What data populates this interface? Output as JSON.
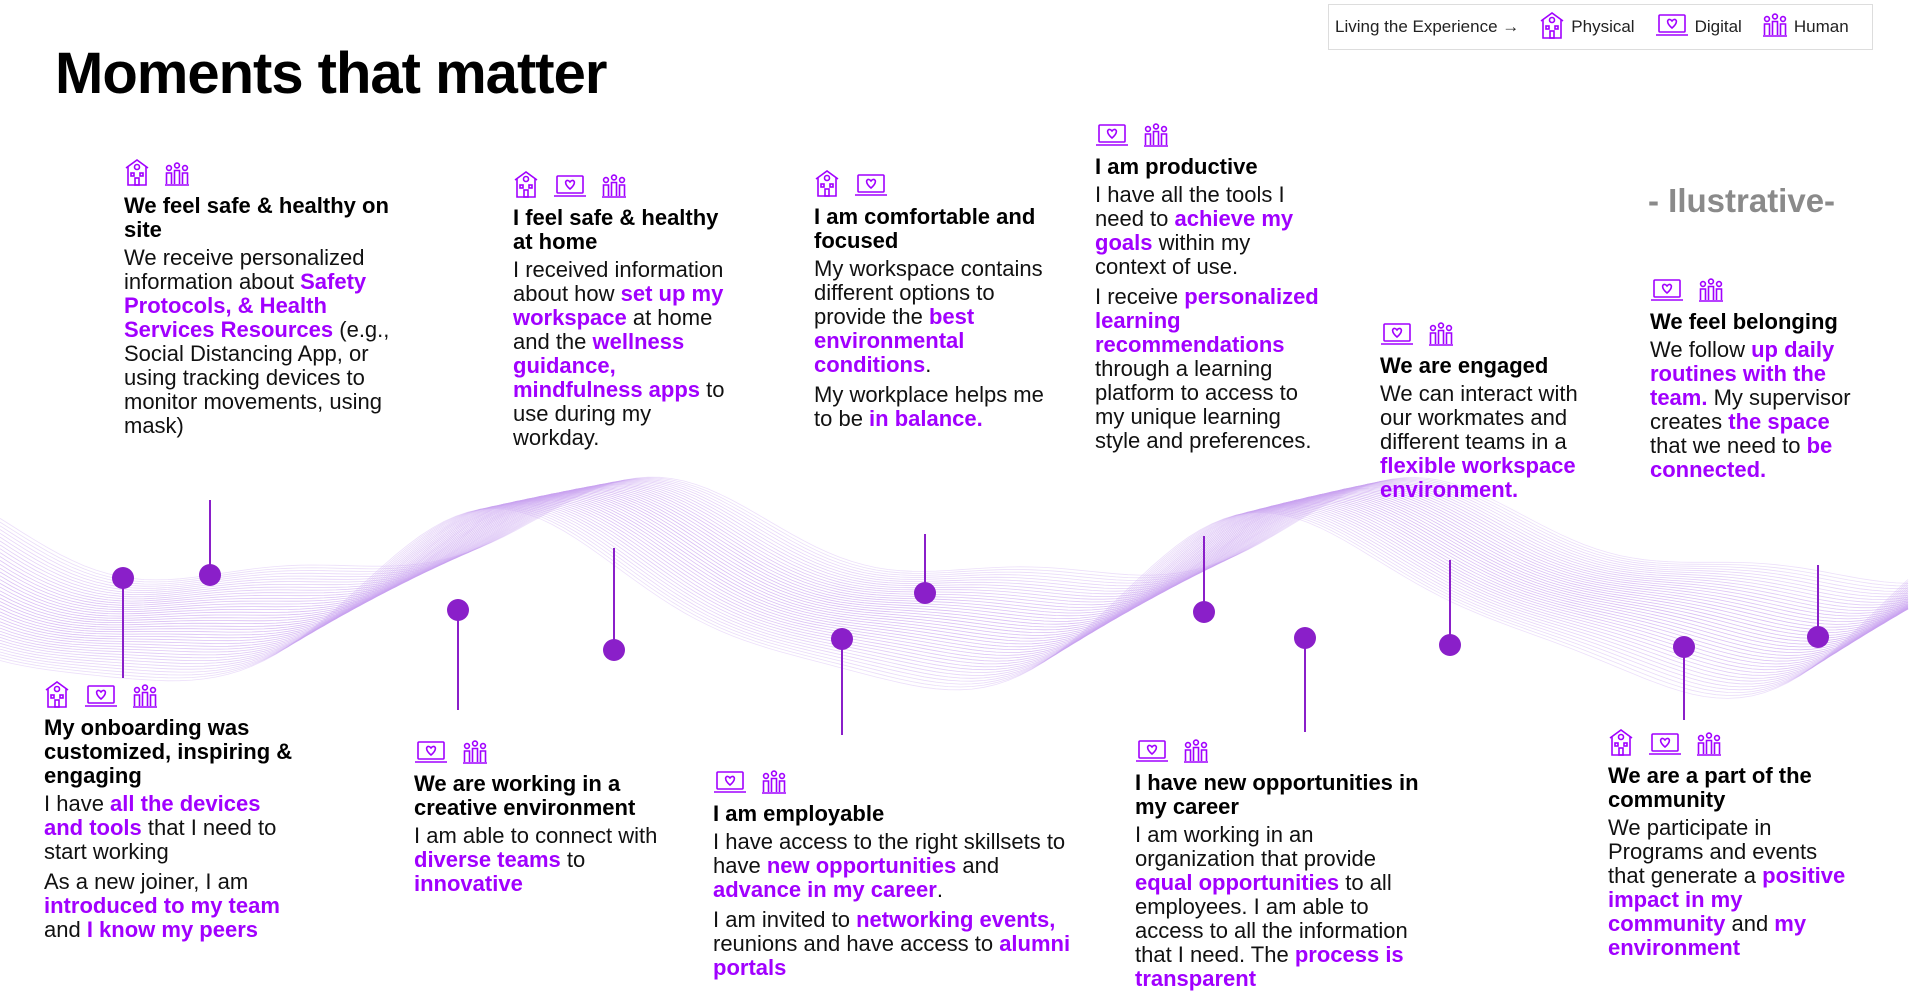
{
  "title": "Moments that matter",
  "illustrative": "- Ilustrative-",
  "legend": {
    "intro": "Living the Experience →",
    "physical": "Physical",
    "digital": "Digital",
    "human": "Human"
  },
  "colors": {
    "accent": "#a100ff",
    "line": "#8a1fc9",
    "node": "#8a1fc9",
    "wave": "#c9a2f0"
  },
  "moments": {
    "safe_on_site": {
      "icons": [
        "physical-icon",
        "human-icon"
      ],
      "title": "We feel safe & healthy on site",
      "p1": [
        {
          "t": "We receive personalized information about "
        },
        {
          "t": "Safety Protocols, & Health Services Resources",
          "hl": true
        },
        {
          "t": " (e.g., Social Distancing App, or using tracking devices to monitor movements, using mask)"
        }
      ]
    },
    "safe_at_home": {
      "icons": [
        "physical-icon",
        "digital-icon",
        "human-icon"
      ],
      "title": "I feel safe & healthy at home",
      "p1": [
        {
          "t": "I received information about how "
        },
        {
          "t": "set up my workspace",
          "hl": true
        },
        {
          "t": " at home and the "
        },
        {
          "t": "wellness guidance, mindfulness apps",
          "hl": true
        },
        {
          "t": " to use during my workday."
        }
      ]
    },
    "comfortable": {
      "icons": [
        "physical-icon",
        "digital-icon"
      ],
      "title": "I am comfortable and focused",
      "p1": [
        {
          "t": "My workspace contains different options to provide the "
        },
        {
          "t": "best environmental conditions",
          "hl": true
        },
        {
          "t": "."
        }
      ],
      "p2": [
        {
          "t": "My workplace helps me to be "
        },
        {
          "t": "in balance.",
          "hl": true
        }
      ]
    },
    "productive": {
      "icons": [
        "digital-icon",
        "human-icon"
      ],
      "title": "I am  productive",
      "p1": [
        {
          "t": "I have all the tools I need to "
        },
        {
          "t": "achieve my goals",
          "hl": true
        },
        {
          "t": " within my context of use."
        }
      ],
      "p2": [
        {
          "t": "I receive "
        },
        {
          "t": "personalized learning recommendations",
          "hl": true
        },
        {
          "t": " through a learning platform to access to my unique learning style and preferences."
        }
      ]
    },
    "engaged": {
      "icons": [
        "digital-icon",
        "human-icon"
      ],
      "title": "We are engaged",
      "p1": [
        {
          "t": "We can interact with our workmates and different teams in a "
        },
        {
          "t": "flexible workspace environment.",
          "hl": true
        }
      ]
    },
    "belonging": {
      "icons": [
        "digital-icon",
        "human-icon"
      ],
      "title": "We feel belonging",
      "p1": [
        {
          "t": "We follow "
        },
        {
          "t": "up daily routines with the team.",
          "hl": true
        },
        {
          "t": " My supervisor creates "
        },
        {
          "t": "the space",
          "hl": true
        },
        {
          "t": " that we need to "
        },
        {
          "t": "be connected.",
          "hl": true
        }
      ]
    },
    "onboarding": {
      "icons": [
        "physical-icon",
        "digital-icon",
        "human-icon"
      ],
      "title": "My onboarding was customized, inspiring & engaging",
      "p1": [
        {
          "t": "I have "
        },
        {
          "t": "all the devices and tools",
          "hl": true
        },
        {
          "t": " that I need to start working"
        }
      ],
      "p2": [
        {
          "t": "As a new joiner, I am "
        },
        {
          "t": "introduced to my team",
          "hl": true
        },
        {
          "t": " and "
        },
        {
          "t": "I know my peers",
          "hl": true
        }
      ]
    },
    "creative": {
      "icons": [
        "digital-icon",
        "human-icon"
      ],
      "title": "We are working in a creative environment",
      "p1": [
        {
          "t": "I am able to connect with "
        },
        {
          "t": "diverse teams",
          "hl": true
        },
        {
          "t": " to "
        },
        {
          "t": "innovative",
          "hl": true
        }
      ]
    },
    "employable": {
      "icons": [
        "digital-icon",
        "human-icon"
      ],
      "title": "I am employable",
      "p1": [
        {
          "t": "I have access to the right skillsets to have "
        },
        {
          "t": "new opportunities",
          "hl": true
        },
        {
          "t": " and "
        },
        {
          "t": "advance in my career",
          "hl": true
        },
        {
          "t": "."
        }
      ],
      "p2": [
        {
          "t": "I am invited to "
        },
        {
          "t": "networking events,",
          "hl": true
        },
        {
          "t": " reunions and have access to "
        },
        {
          "t": "alumni portals",
          "hl": true
        }
      ]
    },
    "opportunities": {
      "icons": [
        "digital-icon",
        "human-icon"
      ],
      "title": "I have new opportunities in my career",
      "p1": [
        {
          "t": "I am working in an organization that provide "
        },
        {
          "t": "equal opportunities",
          "hl": true
        },
        {
          "t": " to all employees. I am able to access to all the information that I need. The "
        },
        {
          "t": "process is transparent",
          "hl": true
        }
      ]
    },
    "community": {
      "icons": [
        "physical-icon",
        "digital-icon",
        "human-icon"
      ],
      "title": "We are a part of the community",
      "p1": [
        {
          "t": "We participate in Programs and events that generate a "
        },
        {
          "t": "positive impact in my community",
          "hl": true
        },
        {
          "t": " and "
        },
        {
          "t": "my environment",
          "hl": true
        }
      ]
    }
  }
}
